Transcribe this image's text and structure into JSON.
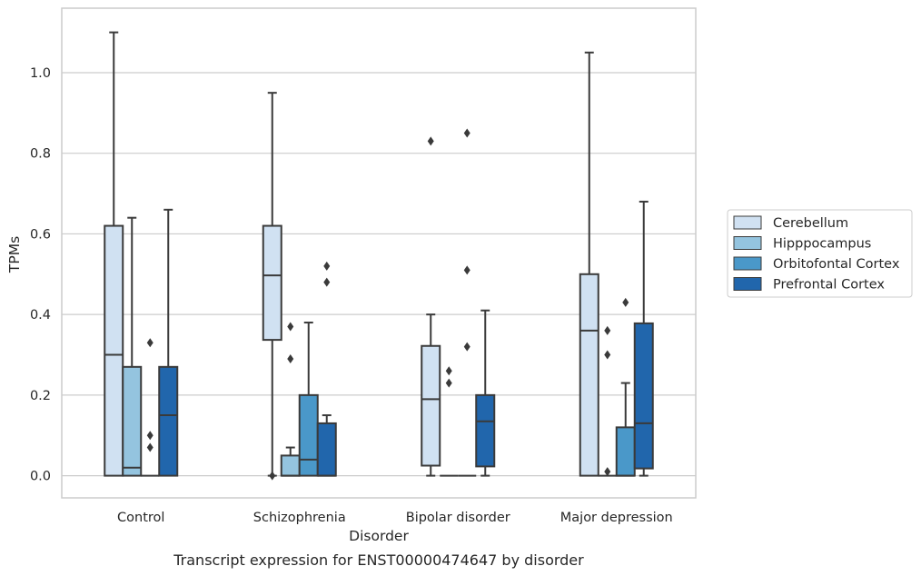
{
  "chart_data": {
    "type": "box",
    "caption": "Transcript expression for ENST00000474647 by disorder",
    "xlabel": "Disorder",
    "ylabel": "TPMs",
    "ylim": [
      -0.055,
      1.16
    ],
    "yticks": [
      0.0,
      0.2,
      0.4,
      0.6,
      0.8,
      1.0
    ],
    "ytick_labels": [
      "0.0",
      "0.2",
      "0.4",
      "0.6",
      "0.8",
      "1.0"
    ],
    "grid": "horizontal",
    "legend_position": "right",
    "categories": [
      "Control",
      "Schizophrenia",
      "Bipolar disorder",
      "Major depression"
    ],
    "series": [
      {
        "name": "Cerebellum",
        "color": "#d0e1f2",
        "boxes": [
          {
            "min": 0.0,
            "q1": 0.0,
            "median": 0.3,
            "q3": 0.62,
            "max": 1.1,
            "outliers": []
          },
          {
            "min": 0.0,
            "q1": 0.337,
            "median": 0.497,
            "q3": 0.62,
            "max": 0.95,
            "outliers": [
              0.0
            ]
          },
          {
            "min": 0.0,
            "q1": 0.025,
            "median": 0.19,
            "q3": 0.322,
            "max": 0.4,
            "outliers": [
              0.83
            ]
          },
          {
            "min": 0.0,
            "q1": 0.0,
            "median": 0.36,
            "q3": 0.5,
            "max": 1.05,
            "outliers": []
          }
        ]
      },
      {
        "name": "Hipppocampus",
        "color": "#94c4df",
        "boxes": [
          {
            "min": 0.0,
            "q1": 0.0,
            "median": 0.02,
            "q3": 0.27,
            "max": 0.64,
            "outliers": []
          },
          {
            "min": 0.0,
            "q1": 0.0,
            "median": 0.0,
            "q3": 0.05,
            "max": 0.07,
            "outliers": [
              0.29,
              0.37
            ]
          },
          {
            "min": 0.0,
            "q1": 0.0,
            "median": 0.0,
            "q3": 0.0,
            "max": 0.0,
            "outliers": [
              0.23,
              0.26
            ]
          },
          {
            "min": 0.0,
            "q1": 0.0,
            "median": 0.0,
            "q3": 0.0,
            "max": 0.0,
            "outliers": [
              0.01,
              0.3,
              0.36
            ]
          }
        ]
      },
      {
        "name": "Orbitofontal Cortex",
        "color": "#4a98c9",
        "boxes": [
          {
            "min": 0.0,
            "q1": 0.0,
            "median": 0.0,
            "q3": 0.0,
            "max": 0.0,
            "outliers": [
              0.07,
              0.1,
              0.33
            ]
          },
          {
            "min": 0.0,
            "q1": 0.0,
            "median": 0.04,
            "q3": 0.2,
            "max": 0.38,
            "outliers": []
          },
          {
            "min": 0.0,
            "q1": 0.0,
            "median": 0.0,
            "q3": 0.0,
            "max": 0.0,
            "outliers": [
              0.32,
              0.51,
              0.85
            ]
          },
          {
            "min": 0.0,
            "q1": 0.0,
            "median": 0.0,
            "q3": 0.12,
            "max": 0.23,
            "outliers": [
              0.43
            ]
          }
        ]
      },
      {
        "name": "Prefrontal Cortex",
        "color": "#2166ac",
        "boxes": [
          {
            "min": 0.0,
            "q1": 0.0,
            "median": 0.15,
            "q3": 0.27,
            "max": 0.66,
            "outliers": []
          },
          {
            "min": 0.0,
            "q1": 0.0,
            "median": 0.0,
            "q3": 0.13,
            "max": 0.15,
            "outliers": [
              0.48,
              0.52
            ]
          },
          {
            "min": 0.0,
            "q1": 0.023,
            "median": 0.135,
            "q3": 0.2,
            "max": 0.41,
            "outliers": []
          },
          {
            "min": 0.0,
            "q1": 0.018,
            "median": 0.13,
            "q3": 0.378,
            "max": 0.68,
            "outliers": []
          }
        ]
      }
    ]
  },
  "colors": {
    "line": "#3a3a3a",
    "grid": "#cccccc",
    "frame": "#cccccc",
    "text": "#262626"
  }
}
